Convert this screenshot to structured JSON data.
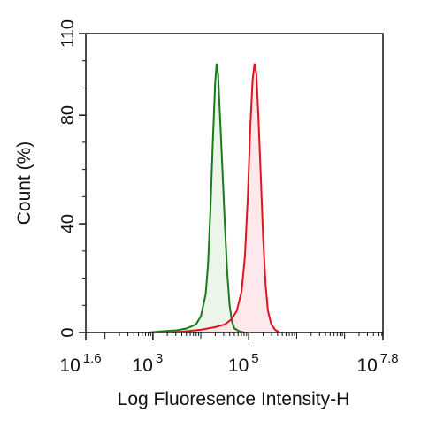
{
  "chart_data": {
    "type": "histogram-overlay",
    "xlabel": "Log Fluoresence Intensity-H",
    "ylabel": "Count  (%)",
    "xlim": [
      1.6,
      7.8
    ],
    "xticks": [
      {
        "value": 1.6,
        "label": "10"
      },
      {
        "value": 3,
        "label": "10"
      },
      {
        "value": 5,
        "label": "10"
      },
      {
        "value": 7.8,
        "label": "10"
      }
    ],
    "ylim": [
      0,
      110
    ],
    "yticks": [
      0,
      40,
      80,
      110
    ],
    "series": [
      {
        "color": "#1a7a1a",
        "fill": "#e6f2e4",
        "x": [
          2.9,
          3.2,
          3.5,
          3.7,
          3.9,
          4.0,
          4.1,
          4.15,
          4.2,
          4.25,
          4.3,
          4.33,
          4.36,
          4.4,
          4.45,
          4.5,
          4.55,
          4.6,
          4.65,
          4.7,
          4.8,
          4.9
        ],
        "values": [
          0,
          0.5,
          0.8,
          1.5,
          3,
          6,
          14,
          25,
          45,
          70,
          92,
          99,
          95,
          80,
          60,
          40,
          22,
          10,
          4,
          1.5,
          0.5,
          0
        ]
      },
      {
        "color": "#e0141e",
        "fill": "#fde4e6",
        "x": [
          3.4,
          3.7,
          4.0,
          4.3,
          4.5,
          4.65,
          4.75,
          4.85,
          4.92,
          4.98,
          5.03,
          5.08,
          5.12,
          5.16,
          5.2,
          5.25,
          5.3,
          5.35,
          5.4,
          5.47,
          5.55,
          5.65
        ],
        "values": [
          0,
          0.5,
          1,
          2,
          3,
          5,
          8,
          15,
          28,
          50,
          75,
          93,
          99,
          95,
          80,
          58,
          35,
          18,
          8,
          3,
          1,
          0
        ]
      }
    ]
  }
}
